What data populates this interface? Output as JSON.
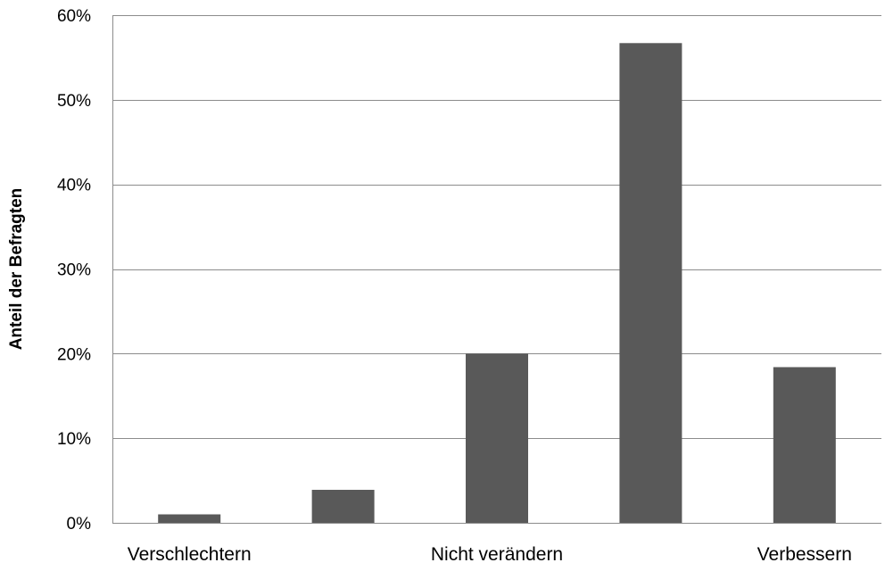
{
  "chart_data": {
    "type": "bar",
    "title": "",
    "xlabel": "",
    "ylabel": "Anteil der Befragten",
    "categories": [
      "Verschlechtern",
      "",
      "Nicht verändern",
      "",
      "Verbessern"
    ],
    "values": [
      1.0,
      3.9,
      20.0,
      56.7,
      18.4
    ],
    "unit": "%",
    "ylim": [
      0,
      60
    ],
    "yticks": [
      0,
      10,
      20,
      30,
      40,
      50,
      60
    ],
    "ytick_labels": [
      "0%",
      "10%",
      "20%",
      "30%",
      "40%",
      "50%",
      "60%"
    ],
    "grid": true,
    "legend": "none",
    "colors": {
      "bar": "#595959",
      "grid": "#8c8c8c",
      "text": "#000000"
    }
  }
}
